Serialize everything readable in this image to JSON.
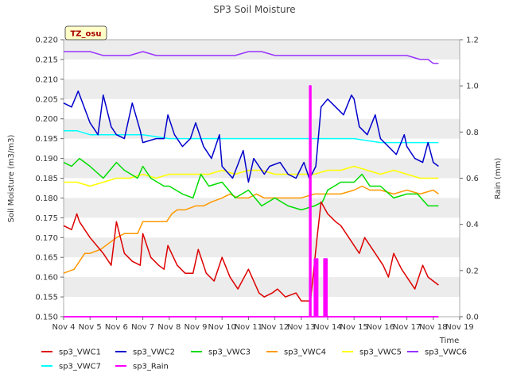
{
  "chart_data": {
    "type": "line",
    "title": "SP3 Soil Moisture",
    "tag": "TZ_osu",
    "xlabel": "Time",
    "ylabel": "Soil Moisture (m3/m3)",
    "y2label": "Rain (mm)",
    "ylim": [
      0.15,
      0.22
    ],
    "y2lim": [
      0.0,
      1.2
    ],
    "xlim": [
      4,
      19
    ],
    "x_ticks": [
      4,
      5,
      6,
      7,
      8,
      9,
      10,
      11,
      12,
      13,
      14,
      15,
      16,
      17,
      18,
      19
    ],
    "x_tick_labels": [
      "Nov 4",
      "Nov 5",
      "Nov 6",
      "Nov 7",
      "Nov 8",
      "Nov 9",
      "Nov 10",
      "Nov 11",
      "Nov 12",
      "Nov 13",
      "Nov 14",
      "Nov 15",
      "Nov 16",
      "Nov 17",
      "Nov 18",
      "Nov 19"
    ],
    "y_ticks": [
      0.15,
      0.155,
      0.16,
      0.165,
      0.17,
      0.175,
      0.18,
      0.185,
      0.19,
      0.195,
      0.2,
      0.205,
      0.21,
      0.215,
      0.22
    ],
    "y_tick_labels": [
      "0.150",
      "0.155",
      "0.160",
      "0.165",
      "0.170",
      "0.175",
      "0.180",
      "0.185",
      "0.190",
      "0.195",
      "0.200",
      "0.205",
      "0.210",
      "0.215",
      "0.220"
    ],
    "y2_ticks": [
      0.0,
      0.2,
      0.4,
      0.6,
      0.8,
      1.0,
      1.2
    ],
    "y2_tick_labels": [
      "0.0",
      "0.2",
      "0.4",
      "0.6",
      "0.8",
      "1.0",
      "1.2"
    ],
    "grid": "horizontal bands",
    "legend_position": "bottom",
    "x_unit_note": "day of November",
    "series": [
      {
        "name": "sp3_VWC1",
        "color": "#dd0000",
        "axis": "left",
        "x": [
          4.0,
          4.3,
          4.5,
          4.6,
          5.0,
          5.5,
          5.8,
          6.0,
          6.3,
          6.6,
          6.9,
          7.0,
          7.3,
          7.6,
          7.8,
          7.95,
          8.3,
          8.6,
          8.9,
          9.1,
          9.4,
          9.7,
          10.0,
          10.3,
          10.6,
          11.0,
          11.4,
          11.6,
          11.9,
          12.1,
          12.4,
          12.8,
          13.0,
          13.35,
          13.6,
          13.75,
          14.0,
          14.3,
          14.5,
          14.8,
          15.0,
          15.2,
          15.4,
          15.8,
          16.1,
          16.3,
          16.5,
          16.8,
          17.0,
          17.3,
          17.6,
          17.8,
          18.0,
          18.2
        ],
        "values": [
          0.173,
          0.172,
          0.176,
          0.174,
          0.17,
          0.166,
          0.163,
          0.174,
          0.166,
          0.164,
          0.163,
          0.171,
          0.165,
          0.163,
          0.162,
          0.168,
          0.163,
          0.161,
          0.161,
          0.167,
          0.161,
          0.159,
          0.165,
          0.16,
          0.157,
          0.162,
          0.156,
          0.155,
          0.156,
          0.157,
          0.155,
          0.156,
          0.154,
          0.154,
          0.17,
          0.179,
          0.176,
          0.174,
          0.173,
          0.17,
          0.168,
          0.166,
          0.17,
          0.166,
          0.163,
          0.16,
          0.166,
          0.162,
          0.16,
          0.157,
          0.163,
          0.16,
          0.159,
          0.158
        ]
      },
      {
        "name": "sp3_VWC2",
        "color": "#0000cc",
        "axis": "left",
        "x": [
          4.0,
          4.3,
          4.55,
          5.0,
          5.3,
          5.5,
          5.8,
          6.0,
          6.3,
          6.6,
          6.9,
          7.0,
          7.5,
          7.8,
          7.95,
          8.2,
          8.5,
          8.8,
          9.0,
          9.3,
          9.6,
          9.9,
          10.0,
          10.4,
          10.8,
          11.0,
          11.2,
          11.6,
          11.8,
          12.2,
          12.5,
          12.8,
          13.1,
          13.3,
          13.4,
          13.55,
          13.75,
          14.0,
          14.3,
          14.6,
          14.9,
          15.0,
          15.2,
          15.5,
          15.8,
          16.0,
          16.3,
          16.6,
          16.9,
          17.0,
          17.3,
          17.6,
          17.8,
          18.0,
          18.2
        ],
        "values": [
          0.204,
          0.203,
          0.207,
          0.199,
          0.196,
          0.206,
          0.198,
          0.196,
          0.195,
          0.204,
          0.197,
          0.194,
          0.195,
          0.195,
          0.201,
          0.196,
          0.193,
          0.195,
          0.199,
          0.193,
          0.19,
          0.196,
          0.188,
          0.185,
          0.192,
          0.184,
          0.19,
          0.186,
          0.188,
          0.189,
          0.186,
          0.185,
          0.189,
          0.185,
          0.186,
          0.188,
          0.203,
          0.205,
          0.203,
          0.201,
          0.206,
          0.205,
          0.198,
          0.196,
          0.201,
          0.195,
          0.193,
          0.191,
          0.196,
          0.193,
          0.19,
          0.189,
          0.194,
          0.189,
          0.188
        ]
      },
      {
        "name": "sp3_VWC3",
        "color": "#00dd00",
        "axis": "left",
        "x": [
          4.0,
          4.3,
          4.6,
          5.0,
          5.5,
          6.0,
          6.3,
          6.8,
          7.0,
          7.3,
          7.8,
          8.0,
          8.5,
          8.9,
          9.2,
          9.5,
          10.0,
          10.5,
          11.0,
          11.5,
          12.0,
          12.5,
          13.0,
          13.5,
          13.8,
          14.0,
          14.5,
          15.0,
          15.3,
          15.6,
          16.0,
          16.5,
          17.0,
          17.4,
          17.8,
          18.2
        ],
        "values": [
          0.189,
          0.188,
          0.19,
          0.188,
          0.185,
          0.189,
          0.187,
          0.185,
          0.188,
          0.185,
          0.183,
          0.183,
          0.181,
          0.18,
          0.186,
          0.183,
          0.184,
          0.18,
          0.182,
          0.178,
          0.18,
          0.178,
          0.177,
          0.178,
          0.179,
          0.182,
          0.184,
          0.184,
          0.186,
          0.183,
          0.183,
          0.18,
          0.181,
          0.181,
          0.178,
          0.178
        ]
      },
      {
        "name": "sp3_VWC4",
        "color": "#ff9900",
        "axis": "left",
        "x": [
          4.0,
          4.4,
          4.8,
          5.0,
          5.4,
          5.8,
          6.0,
          6.3,
          6.8,
          7.0,
          7.5,
          7.9,
          8.1,
          8.3,
          8.6,
          9.0,
          9.3,
          9.6,
          10.0,
          10.3,
          10.6,
          11.0,
          11.3,
          11.6,
          12.0,
          12.5,
          13.0,
          13.5,
          14.0,
          14.5,
          15.0,
          15.3,
          15.6,
          16.0,
          16.5,
          17.0,
          17.5,
          18.0,
          18.2
        ],
        "values": [
          0.161,
          0.162,
          0.166,
          0.166,
          0.167,
          0.169,
          0.17,
          0.171,
          0.171,
          0.174,
          0.174,
          0.174,
          0.176,
          0.177,
          0.177,
          0.178,
          0.178,
          0.179,
          0.18,
          0.181,
          0.18,
          0.18,
          0.181,
          0.18,
          0.18,
          0.18,
          0.18,
          0.181,
          0.181,
          0.181,
          0.182,
          0.183,
          0.182,
          0.182,
          0.181,
          0.182,
          0.181,
          0.182,
          0.181
        ]
      },
      {
        "name": "sp3_VWC5",
        "color": "#ffff00",
        "axis": "left",
        "x": [
          4.0,
          4.5,
          5.0,
          5.5,
          6.0,
          6.5,
          7.0,
          7.5,
          8.0,
          8.5,
          9.0,
          9.5,
          10.0,
          10.5,
          11.0,
          11.5,
          12.0,
          12.5,
          13.0,
          13.5,
          14.0,
          14.5,
          15.0,
          15.5,
          16.0,
          16.5,
          17.0,
          17.5,
          18.0,
          18.2
        ],
        "values": [
          0.184,
          0.184,
          0.183,
          0.184,
          0.185,
          0.185,
          0.186,
          0.185,
          0.186,
          0.186,
          0.186,
          0.186,
          0.187,
          0.186,
          0.187,
          0.187,
          0.186,
          0.186,
          0.186,
          0.186,
          0.187,
          0.187,
          0.188,
          0.187,
          0.186,
          0.187,
          0.186,
          0.185,
          0.185,
          0.185
        ]
      },
      {
        "name": "sp3_VWC6",
        "color": "#9933ff",
        "axis": "left",
        "x": [
          4.0,
          4.5,
          5.0,
          5.5,
          6.0,
          6.5,
          7.0,
          7.5,
          8.0,
          8.5,
          9.0,
          9.5,
          10.0,
          10.5,
          11.0,
          11.5,
          12.0,
          12.5,
          13.0,
          13.5,
          14.0,
          14.5,
          15.0,
          15.5,
          16.0,
          16.5,
          17.0,
          17.5,
          17.8,
          18.0,
          18.2
        ],
        "values": [
          0.217,
          0.217,
          0.217,
          0.216,
          0.216,
          0.216,
          0.217,
          0.216,
          0.216,
          0.216,
          0.216,
          0.216,
          0.216,
          0.216,
          0.217,
          0.217,
          0.216,
          0.216,
          0.216,
          0.216,
          0.216,
          0.216,
          0.216,
          0.216,
          0.216,
          0.216,
          0.216,
          0.215,
          0.215,
          0.214,
          0.214
        ]
      },
      {
        "name": "sp3_VWC7",
        "color": "#00ffff",
        "axis": "left",
        "x": [
          4.0,
          4.5,
          5.0,
          6.0,
          7.0,
          8.0,
          9.0,
          10.0,
          11.0,
          12.0,
          13.0,
          14.0,
          15.0,
          16.0,
          17.0,
          18.0,
          18.2
        ],
        "values": [
          0.197,
          0.197,
          0.196,
          0.196,
          0.196,
          0.195,
          0.195,
          0.195,
          0.195,
          0.195,
          0.195,
          0.195,
          0.195,
          0.194,
          0.194,
          0.194,
          0.194
        ]
      },
      {
        "name": "sp3_Rain",
        "color": "#ff00ff",
        "axis": "right",
        "x": [
          4.0,
          13.32,
          13.32,
          13.36,
          13.36,
          13.5,
          13.5,
          13.53,
          13.53,
          13.58,
          13.58,
          13.62,
          13.62,
          13.86,
          13.86,
          13.88,
          13.88,
          13.9,
          13.9,
          13.92,
          13.92,
          13.95,
          13.95,
          13.97,
          13.97,
          18.2
        ],
        "values": [
          0.0,
          0.0,
          1.0,
          1.0,
          0.0,
          0.0,
          0.25,
          0.25,
          0.0,
          0.0,
          0.25,
          0.25,
          0.0,
          0.0,
          0.25,
          0.25,
          0.0,
          0.0,
          0.25,
          0.25,
          0.0,
          0.0,
          0.25,
          0.25,
          0.0,
          0.0
        ]
      }
    ]
  }
}
